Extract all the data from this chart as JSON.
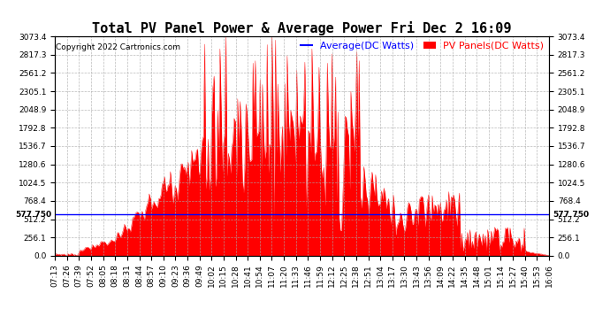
{
  "title": "Total PV Panel Power & Average Power Fri Dec 2 16:09",
  "copyright": "Copyright 2022 Cartronics.com",
  "legend_average": "Average(DC Watts)",
  "legend_pv": "PV Panels(DC Watts)",
  "average_value": 577.75,
  "ymax": 3073.4,
  "ymin": 0.0,
  "yticks": [
    0.0,
    256.1,
    512.2,
    768.4,
    1024.5,
    1280.6,
    1536.7,
    1792.8,
    2048.9,
    2305.1,
    2561.2,
    2817.3,
    3073.4
  ],
  "avg_label": "577.750",
  "background_color": "#ffffff",
  "fill_color": "#ff0000",
  "line_color": "#ff0000",
  "avg_line_color": "#0000ff",
  "grid_color": "#aaaaaa",
  "title_fontsize": 11,
  "copyright_fontsize": 6.5,
  "legend_fontsize": 8,
  "tick_fontsize": 6.5,
  "time_labels": [
    "07:13",
    "07:26",
    "07:39",
    "07:52",
    "08:05",
    "08:18",
    "08:31",
    "08:44",
    "08:57",
    "09:10",
    "09:23",
    "09:36",
    "09:49",
    "10:02",
    "10:15",
    "10:28",
    "10:41",
    "10:54",
    "11:07",
    "11:20",
    "11:33",
    "11:46",
    "11:59",
    "12:12",
    "12:25",
    "12:38",
    "12:51",
    "13:04",
    "13:17",
    "13:30",
    "13:43",
    "13:56",
    "14:09",
    "14:22",
    "14:35",
    "14:48",
    "15:01",
    "15:14",
    "15:27",
    "15:40",
    "15:53",
    "16:06"
  ]
}
